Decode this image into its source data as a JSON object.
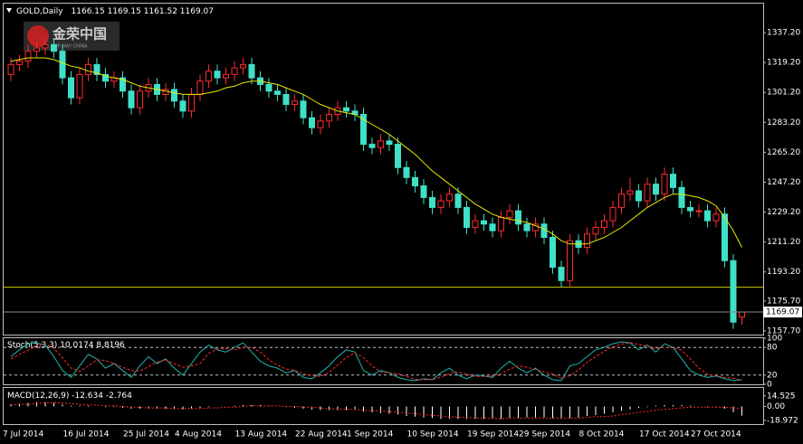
{
  "chart_data": [
    {
      "type": "candlestick",
      "symbol": "GOLD,Daily",
      "logo": "金荣中国",
      "logo_sub": "UP WAY CHINA",
      "categories": [
        "7 Jul 2014",
        null,
        null,
        null,
        null,
        null,
        null,
        "16 Jul 2014",
        null,
        null,
        null,
        null,
        null,
        null,
        "25 Jul 2014",
        null,
        null,
        null,
        null,
        null,
        "4 Aug 2014",
        null,
        null,
        null,
        null,
        null,
        null,
        "13 Aug 2014",
        null,
        null,
        null,
        null,
        null,
        null,
        "22 Aug 2014",
        null,
        null,
        null,
        null,
        null,
        "1 Sep 2014",
        null,
        null,
        null,
        null,
        null,
        null,
        "10 Sep 2014",
        null,
        null,
        null,
        null,
        null,
        null,
        "19 Sep 2014",
        null,
        null,
        null,
        null,
        null,
        "29 Sep 2014",
        null,
        null,
        null,
        null,
        null,
        null,
        "8 Oct 2014",
        null,
        null,
        null,
        null,
        null,
        null,
        "17 Oct 2014",
        null,
        null,
        null,
        null,
        null,
        "27 Oct 2014",
        null,
        null,
        null,
        null,
        null
      ],
      "open": [
        1312,
        1318,
        1320,
        1326,
        1328,
        1330,
        1326,
        1310,
        1298,
        1312,
        1318,
        1312,
        1308,
        1310,
        1302,
        1292,
        1302,
        1306,
        1300,
        1303,
        1296,
        1290,
        1300,
        1308,
        1314,
        1310,
        1312,
        1316,
        1318,
        1310,
        1306,
        1302,
        1300,
        1294,
        1296,
        1286,
        1280,
        1284,
        1288,
        1292,
        1290,
        1288,
        1270,
        1268,
        1272,
        1270,
        1256,
        1250,
        1245,
        1238,
        1232,
        1236,
        1240,
        1232,
        1220,
        1224,
        1222,
        1218,
        1226,
        1230,
        1222,
        1218,
        1222,
        1214,
        1196,
        1188,
        1212,
        1208,
        1216,
        1220,
        1224,
        1232,
        1240,
        1242,
        1236,
        1246,
        1240,
        1252,
        1244,
        1232,
        1230,
        1230,
        1224,
        1228,
        1200,
        1166.15
      ],
      "high": [
        1322,
        1324,
        1330,
        1332,
        1334,
        1334,
        1330,
        1314,
        1316,
        1322,
        1322,
        1316,
        1314,
        1314,
        1306,
        1306,
        1310,
        1310,
        1307,
        1307,
        1300,
        1304,
        1312,
        1318,
        1318,
        1316,
        1320,
        1322,
        1322,
        1314,
        1310,
        1306,
        1304,
        1300,
        1300,
        1290,
        1288,
        1292,
        1296,
        1296,
        1294,
        1292,
        1274,
        1276,
        1276,
        1274,
        1260,
        1254,
        1249,
        1242,
        1240,
        1244,
        1244,
        1236,
        1228,
        1228,
        1226,
        1230,
        1234,
        1234,
        1226,
        1226,
        1226,
        1218,
        1200,
        1216,
        1216,
        1220,
        1224,
        1228,
        1236,
        1244,
        1250,
        1246,
        1250,
        1250,
        1256,
        1256,
        1248,
        1236,
        1234,
        1234,
        1232,
        1232,
        1204,
        1169.15
      ],
      "low": [
        1308,
        1314,
        1316,
        1322,
        1324,
        1322,
        1306,
        1294,
        1294,
        1308,
        1308,
        1304,
        1304,
        1298,
        1288,
        1288,
        1298,
        1296,
        1296,
        1292,
        1286,
        1286,
        1296,
        1304,
        1306,
        1306,
        1308,
        1312,
        1306,
        1302,
        1298,
        1296,
        1290,
        1290,
        1282,
        1276,
        1276,
        1280,
        1284,
        1286,
        1284,
        1266,
        1264,
        1264,
        1266,
        1252,
        1246,
        1241,
        1234,
        1228,
        1228,
        1232,
        1228,
        1216,
        1216,
        1218,
        1214,
        1214,
        1222,
        1218,
        1214,
        1214,
        1210,
        1192,
        1184,
        1184,
        1204,
        1204,
        1212,
        1216,
        1220,
        1228,
        1236,
        1232,
        1232,
        1236,
        1236,
        1240,
        1228,
        1226,
        1226,
        1220,
        1220,
        1196,
        1159,
        1161.52
      ],
      "close": [
        1318,
        1320,
        1326,
        1328,
        1330,
        1326,
        1310,
        1298,
        1312,
        1318,
        1312,
        1308,
        1310,
        1302,
        1292,
        1302,
        1306,
        1300,
        1303,
        1296,
        1290,
        1300,
        1308,
        1314,
        1310,
        1312,
        1316,
        1318,
        1310,
        1306,
        1302,
        1300,
        1294,
        1296,
        1286,
        1280,
        1284,
        1288,
        1292,
        1290,
        1288,
        1270,
        1268,
        1272,
        1270,
        1256,
        1250,
        1245,
        1238,
        1232,
        1236,
        1240,
        1232,
        1220,
        1224,
        1222,
        1218,
        1226,
        1230,
        1222,
        1218,
        1222,
        1214,
        1196,
        1188,
        1212,
        1208,
        1216,
        1220,
        1224,
        1232,
        1240,
        1242,
        1236,
        1246,
        1240,
        1252,
        1244,
        1232,
        1230,
        1230,
        1224,
        1228,
        1200,
        1163,
        1169.07
      ],
      "up_color": "#ff2a2a",
      "down_color": "#40e0c8",
      "ma": {
        "color": "#e8e800",
        "values": [
          1320,
          1321,
          1322,
          1322,
          1322,
          1321,
          1319,
          1317,
          1316,
          1314,
          1313,
          1311,
          1310,
          1309,
          1307,
          1305,
          1304,
          1303,
          1302,
          1301,
          1300,
          1300,
          1300,
          1301,
          1302,
          1304,
          1305,
          1307,
          1308,
          1308,
          1307,
          1306,
          1304,
          1302,
          1300,
          1297,
          1294,
          1292,
          1290,
          1289,
          1288,
          1285,
          1282,
          1279,
          1276,
          1272,
          1268,
          1264,
          1259,
          1254,
          1250,
          1246,
          1242,
          1238,
          1234,
          1231,
          1228,
          1226,
          1225,
          1224,
          1223,
          1221,
          1219,
          1216,
          1212,
          1210,
          1210,
          1210,
          1212,
          1214,
          1217,
          1220,
          1224,
          1228,
          1232,
          1235,
          1238,
          1240,
          1240,
          1239,
          1238,
          1236,
          1233,
          1226,
          1218,
          1208
        ]
      },
      "hlines": [
        {
          "value": 1184,
          "color": "#c8c800"
        }
      ],
      "ylim": [
        1155.5,
        1355.2
      ],
      "yticks": [
        {
          "value": 1337.2,
          "label": "1337.20"
        },
        {
          "value": 1319.2,
          "label": "1319.20"
        },
        {
          "value": 1301.2,
          "label": "1301.20"
        },
        {
          "value": 1283.2,
          "label": "1283.20"
        },
        {
          "value": 1265.2,
          "label": "1265.20"
        },
        {
          "value": 1247.2,
          "label": "1247.20"
        },
        {
          "value": 1229.2,
          "label": "1229.20"
        },
        {
          "value": 1211.2,
          "label": "1211.20"
        },
        {
          "value": 1193.2,
          "label": "1193.20"
        },
        {
          "value": 1175.7,
          "label": "1175.70"
        },
        {
          "value": 1157.7,
          "label": "1157.70"
        }
      ]
    },
    {
      "type": "line",
      "title": "Stoch(5,3,3)",
      "series": [
        {
          "color": "#20b2aa",
          "dash": false,
          "values": [
            60,
            75,
            88,
            90,
            85,
            60,
            30,
            15,
            40,
            65,
            55,
            35,
            45,
            30,
            15,
            40,
            60,
            45,
            55,
            35,
            20,
            45,
            70,
            85,
            75,
            70,
            80,
            90,
            70,
            50,
            40,
            35,
            25,
            30,
            15,
            12,
            25,
            40,
            60,
            75,
            70,
            30,
            20,
            30,
            25,
            15,
            10,
            8,
            12,
            10,
            25,
            35,
            20,
            12,
            20,
            18,
            15,
            35,
            50,
            35,
            25,
            35,
            20,
            10,
            8,
            40,
            45,
            60,
            75,
            80,
            88,
            92,
            90,
            75,
            85,
            70,
            88,
            80,
            55,
            30,
            20,
            15,
            18,
            12,
            8,
            10.0174
          ]
        },
        {
          "color": "#ff2a2a",
          "dash": true,
          "values": [
            55,
            65,
            74,
            84,
            88,
            78,
            58,
            35,
            28,
            40,
            53,
            52,
            45,
            37,
            30,
            29,
            38,
            48,
            53,
            45,
            37,
            40,
            45,
            67,
            77,
            77,
            75,
            80,
            80,
            70,
            53,
            42,
            33,
            30,
            23,
            19,
            17,
            26,
            42,
            58,
            68,
            58,
            40,
            27,
            25,
            23,
            17,
            11,
            10,
            10,
            16,
            23,
            27,
            22,
            17,
            17,
            18,
            23,
            33,
            40,
            37,
            32,
            27,
            22,
            13,
            19,
            31,
            48,
            60,
            72,
            81,
            87,
            90,
            86,
            83,
            77,
            81,
            79,
            74,
            55,
            35,
            22,
            18,
            15,
            13,
            8.8196
          ]
        }
      ],
      "levels": [
        20,
        80
      ],
      "ylim": [
        0,
        100
      ],
      "yticks": [
        100,
        80,
        20,
        0
      ]
    },
    {
      "type": "macd",
      "title": "MACD(12,26,9)",
      "histogram": {
        "color": "#ffffff",
        "values": [
          3,
          4,
          5,
          6,
          6,
          5,
          3,
          1,
          1,
          1,
          0,
          -1,
          -1,
          -2,
          -3,
          -3,
          -3,
          -3,
          -3,
          -3,
          -4,
          -3,
          -2,
          -1,
          0,
          0,
          1,
          2,
          2,
          2,
          1,
          0,
          -1,
          -2,
          -3,
          -4,
          -5,
          -5,
          -5,
          -5,
          -5,
          -7,
          -8,
          -9,
          -10,
          -11,
          -13,
          -14,
          -15,
          -16,
          -17,
          -17,
          -17,
          -17,
          -17,
          -17,
          -17,
          -17,
          -16,
          -16,
          -15,
          -15,
          -15,
          -16,
          -17,
          -16,
          -15,
          -13,
          -12,
          -10,
          -8,
          -6,
          -4,
          -2,
          -1,
          1,
          2,
          2,
          2,
          1,
          0,
          -1,
          -1,
          -3,
          -8,
          -12.634
        ]
      },
      "signal": {
        "color": "#ff2a2a",
        "values": [
          2,
          3,
          3,
          4,
          5,
          5,
          5,
          4,
          3,
          2,
          2,
          1,
          1,
          0,
          -1,
          -1,
          -2,
          -2,
          -2,
          -3,
          -3,
          -3,
          -3,
          -2,
          -2,
          -1,
          -1,
          0,
          1,
          1,
          1,
          1,
          0,
          0,
          -1,
          -1,
          -2,
          -3,
          -4,
          -4,
          -4,
          -5,
          -6,
          -6,
          -7,
          -8,
          -9,
          -10,
          -11,
          -12,
          -13,
          -14,
          -15,
          -15,
          -16,
          -16,
          -16,
          -17,
          -16,
          -16,
          -16,
          -16,
          -16,
          -16,
          -16,
          -16,
          -16,
          -15,
          -14,
          -14,
          -13,
          -11,
          -10,
          -8,
          -7,
          -5,
          -4,
          -3,
          -2,
          -1,
          -1,
          -1,
          -1,
          -1,
          -2,
          -2.764
        ]
      },
      "ylim": [
        -24.2,
        25.4
      ],
      "yticks": [
        14.525,
        {
          "value": 0,
          "label": "0.00"
        },
        -18.972
      ]
    }
  ]
}
